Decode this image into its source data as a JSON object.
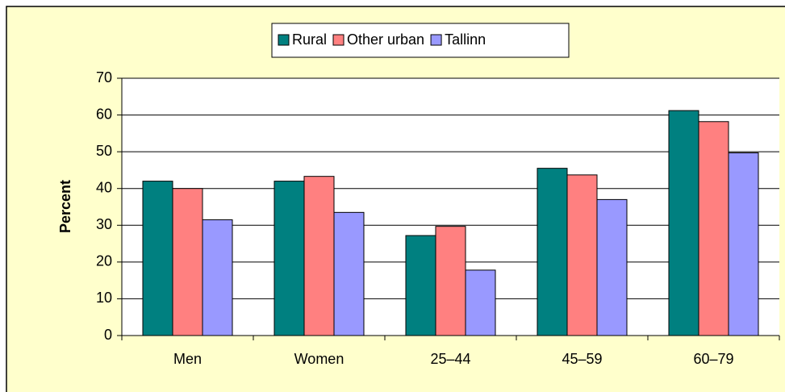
{
  "chart_data": {
    "type": "bar",
    "y_label": "Percent",
    "categories": [
      "Men",
      "Women",
      "25–44",
      "45–59",
      "60–79"
    ],
    "series": [
      {
        "name": "Rural",
        "color": "#008080",
        "values": [
          42,
          42,
          27.2,
          45.5,
          61.2
        ]
      },
      {
        "name": "Other urban",
        "color": "#ff8080",
        "values": [
          40,
          43.3,
          29.7,
          43.7,
          58.2
        ]
      },
      {
        "name": "Tallinn",
        "color": "#9999ff",
        "values": [
          31.5,
          33.5,
          17.8,
          37,
          49.7
        ]
      }
    ],
    "ylim": [
      0,
      70
    ],
    "yticks": [
      0,
      10,
      20,
      30,
      40,
      50,
      60,
      70
    ],
    "grid": true,
    "legend": "top"
  }
}
